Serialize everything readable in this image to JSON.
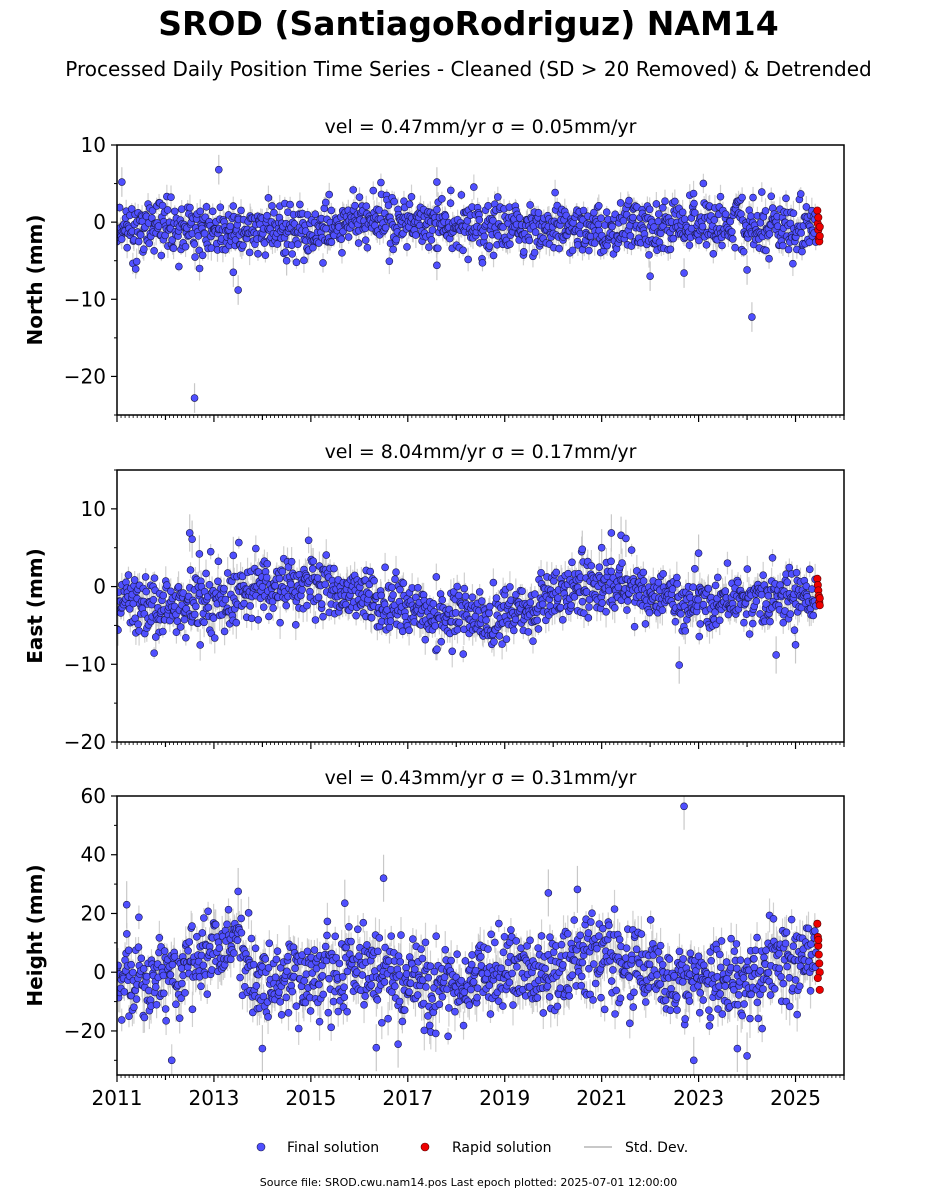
{
  "title": "SROD (SantiagoRodriguz) NAM14",
  "subtitle": "Processed Daily Position Time Series - Cleaned (SD > 20 Removed) & Detrended",
  "footer": "Source file: SROD.cwu.nam14.pos  Last epoch plotted: 2025-07-01 12:00:00",
  "colors": {
    "final": "#4f4fff",
    "final_edge": "#1a1a4a",
    "rapid": "#ee0000",
    "rapid_edge": "#550000",
    "stddev": "#c8c8c8"
  },
  "chart_data": {
    "type": "scatter",
    "x_range": [
      2011.0,
      2026.0
    ],
    "x_ticks": [
      "2011",
      "2013",
      "2015",
      "2017",
      "2019",
      "2021",
      "2023",
      "2025"
    ],
    "x_tick_values": [
      2011,
      2013,
      2015,
      2017,
      2019,
      2021,
      2023,
      2025
    ],
    "legend": {
      "placement": "bottom-center",
      "entries": [
        {
          "label": "Final solution",
          "kind": "final"
        },
        {
          "label": "Rapid solution",
          "kind": "rapid"
        },
        {
          "label": "Std. Dev.",
          "kind": "stddev"
        }
      ]
    },
    "panels": [
      {
        "name": "north",
        "ylabel": "North (mm)",
        "header": "vel = 0.47mm/yr   σ = 0.05mm/yr",
        "ylim": [
          -25,
          10
        ],
        "yticks": [
          10,
          0,
          -10,
          -20
        ],
        "ytick_labels": [
          "10",
          "0",
          "−10",
          "−20"
        ],
        "scatter": 1.8,
        "err": 1.2,
        "trend": [
          [
            2011.0,
            -1.0
          ],
          [
            2013.0,
            -1.0
          ],
          [
            2015.0,
            -1.3
          ],
          [
            2015.8,
            0.3
          ],
          [
            2017.0,
            -0.3
          ],
          [
            2019.0,
            -0.6
          ],
          [
            2021.0,
            -0.8
          ],
          [
            2022.0,
            -1.3
          ],
          [
            2023.0,
            -0.2
          ],
          [
            2024.0,
            -0.6
          ],
          [
            2025.5,
            -0.8
          ]
        ],
        "outliers": [
          [
            2011.1,
            5.2
          ],
          [
            2012.6,
            -22.8
          ],
          [
            2013.1,
            6.8
          ],
          [
            2013.4,
            -6.5
          ],
          [
            2013.5,
            -8.8
          ],
          [
            2017.6,
            -5.6
          ],
          [
            2017.6,
            5.2
          ],
          [
            2022.7,
            -6.6
          ],
          [
            2024.0,
            -6.2
          ],
          [
            2024.1,
            -12.3
          ],
          [
            2022.0,
            -7.0
          ],
          [
            2014.5,
            -5.0
          ]
        ],
        "rapid": [
          [
            2025.45,
            1.5
          ],
          [
            2025.46,
            -0.2
          ],
          [
            2025.47,
            -1.0
          ],
          [
            2025.48,
            -2.1
          ],
          [
            2025.49,
            -2.5
          ],
          [
            2025.5,
            -1.8
          ],
          [
            2025.5,
            -0.6
          ],
          [
            2025.47,
            0.6
          ]
        ]
      },
      {
        "name": "east",
        "ylabel": "East (mm)",
        "header": "vel = 8.04mm/yr   σ = 0.17mm/yr",
        "ylim": [
          -20,
          15
        ],
        "yticks": [
          10,
          0,
          -10,
          -20
        ],
        "ytick_labels": [
          "10",
          "0",
          "−10",
          "−20"
        ],
        "scatter": 1.9,
        "err": 1.5,
        "trend": [
          [
            2011.0,
            -1.5
          ],
          [
            2012.0,
            -2.5
          ],
          [
            2013.0,
            -2.0
          ],
          [
            2014.0,
            0.0
          ],
          [
            2015.0,
            0.3
          ],
          [
            2016.0,
            -1.0
          ],
          [
            2016.5,
            -3.5
          ],
          [
            2017.0,
            -3.0
          ],
          [
            2018.0,
            -3.5
          ],
          [
            2018.7,
            -4.5
          ],
          [
            2019.5,
            -3.0
          ],
          [
            2020.0,
            -1.5
          ],
          [
            2020.7,
            0.2
          ],
          [
            2021.3,
            0.6
          ],
          [
            2021.8,
            -1.0
          ],
          [
            2022.5,
            -2.0
          ],
          [
            2023.0,
            -2.2
          ],
          [
            2024.0,
            -1.5
          ],
          [
            2025.0,
            -1.5
          ],
          [
            2025.5,
            -1.2
          ]
        ],
        "outliers": [
          [
            2012.5,
            6.9
          ],
          [
            2012.55,
            6.1
          ],
          [
            2012.7,
            4.2
          ],
          [
            2020.6,
            4.8
          ],
          [
            2021.0,
            5.0
          ],
          [
            2021.2,
            6.9
          ],
          [
            2021.4,
            6.6
          ],
          [
            2021.5,
            6.2
          ],
          [
            2022.6,
            -10.1
          ],
          [
            2024.6,
            -8.8
          ],
          [
            2025.0,
            -7.5
          ],
          [
            2023.0,
            4.3
          ],
          [
            2013.4,
            4.0
          ],
          [
            2011.8,
            -6.5
          ]
        ],
        "rapid": [
          [
            2025.45,
            1.0
          ],
          [
            2025.46,
            0.2
          ],
          [
            2025.47,
            -0.5
          ],
          [
            2025.48,
            -1.2
          ],
          [
            2025.49,
            -2.0
          ],
          [
            2025.5,
            -2.4
          ],
          [
            2025.5,
            -1.5
          ]
        ]
      },
      {
        "name": "height",
        "ylabel": "Height (mm)",
        "header": "vel = 0.43mm/yr   σ = 0.31mm/yr",
        "ylim": [
          -35,
          60
        ],
        "yticks": [
          60,
          40,
          20,
          0,
          -20
        ],
        "ytick_labels": [
          "60",
          "40",
          "20",
          "0",
          "−20"
        ],
        "scatter": 7.0,
        "err": 5.0,
        "trend": [
          [
            2011.0,
            0.0
          ],
          [
            2012.0,
            -3.0
          ],
          [
            2012.5,
            2.0
          ],
          [
            2013.0,
            6.0
          ],
          [
            2013.5,
            10.0
          ],
          [
            2014.0,
            -5.0
          ],
          [
            2015.0,
            -1.0
          ],
          [
            2016.0,
            1.0
          ],
          [
            2017.0,
            -3.0
          ],
          [
            2018.0,
            -2.0
          ],
          [
            2019.0,
            0.0
          ],
          [
            2020.0,
            2.0
          ],
          [
            2020.5,
            5.0
          ],
          [
            2021.0,
            3.0
          ],
          [
            2022.0,
            0.0
          ],
          [
            2022.5,
            -5.0
          ],
          [
            2023.0,
            -1.0
          ],
          [
            2024.0,
            -4.0
          ],
          [
            2024.5,
            2.0
          ],
          [
            2025.0,
            5.0
          ],
          [
            2025.5,
            6.0
          ]
        ],
        "outliers": [
          [
            2022.7,
            56.5
          ],
          [
            2016.5,
            32.0
          ],
          [
            2011.2,
            23.0
          ],
          [
            2013.5,
            27.5
          ],
          [
            2016.35,
            -25.7
          ],
          [
            2022.9,
            -30.0
          ],
          [
            2024.0,
            -28.5
          ],
          [
            2014.0,
            -26.0
          ],
          [
            2019.9,
            27.0
          ],
          [
            2020.5,
            28.2
          ],
          [
            2015.7,
            23.5
          ],
          [
            2016.8,
            -24.5
          ],
          [
            2023.8,
            -26.0
          ]
        ],
        "rapid": [
          [
            2025.45,
            16.5
          ],
          [
            2025.46,
            12.0
          ],
          [
            2025.47,
            9.0
          ],
          [
            2025.48,
            6.0
          ],
          [
            2025.49,
            3.0
          ],
          [
            2025.5,
            0.0
          ],
          [
            2025.5,
            -6.0
          ],
          [
            2025.47,
            11.0
          ],
          [
            2025.46,
            -2.0
          ]
        ]
      }
    ]
  }
}
